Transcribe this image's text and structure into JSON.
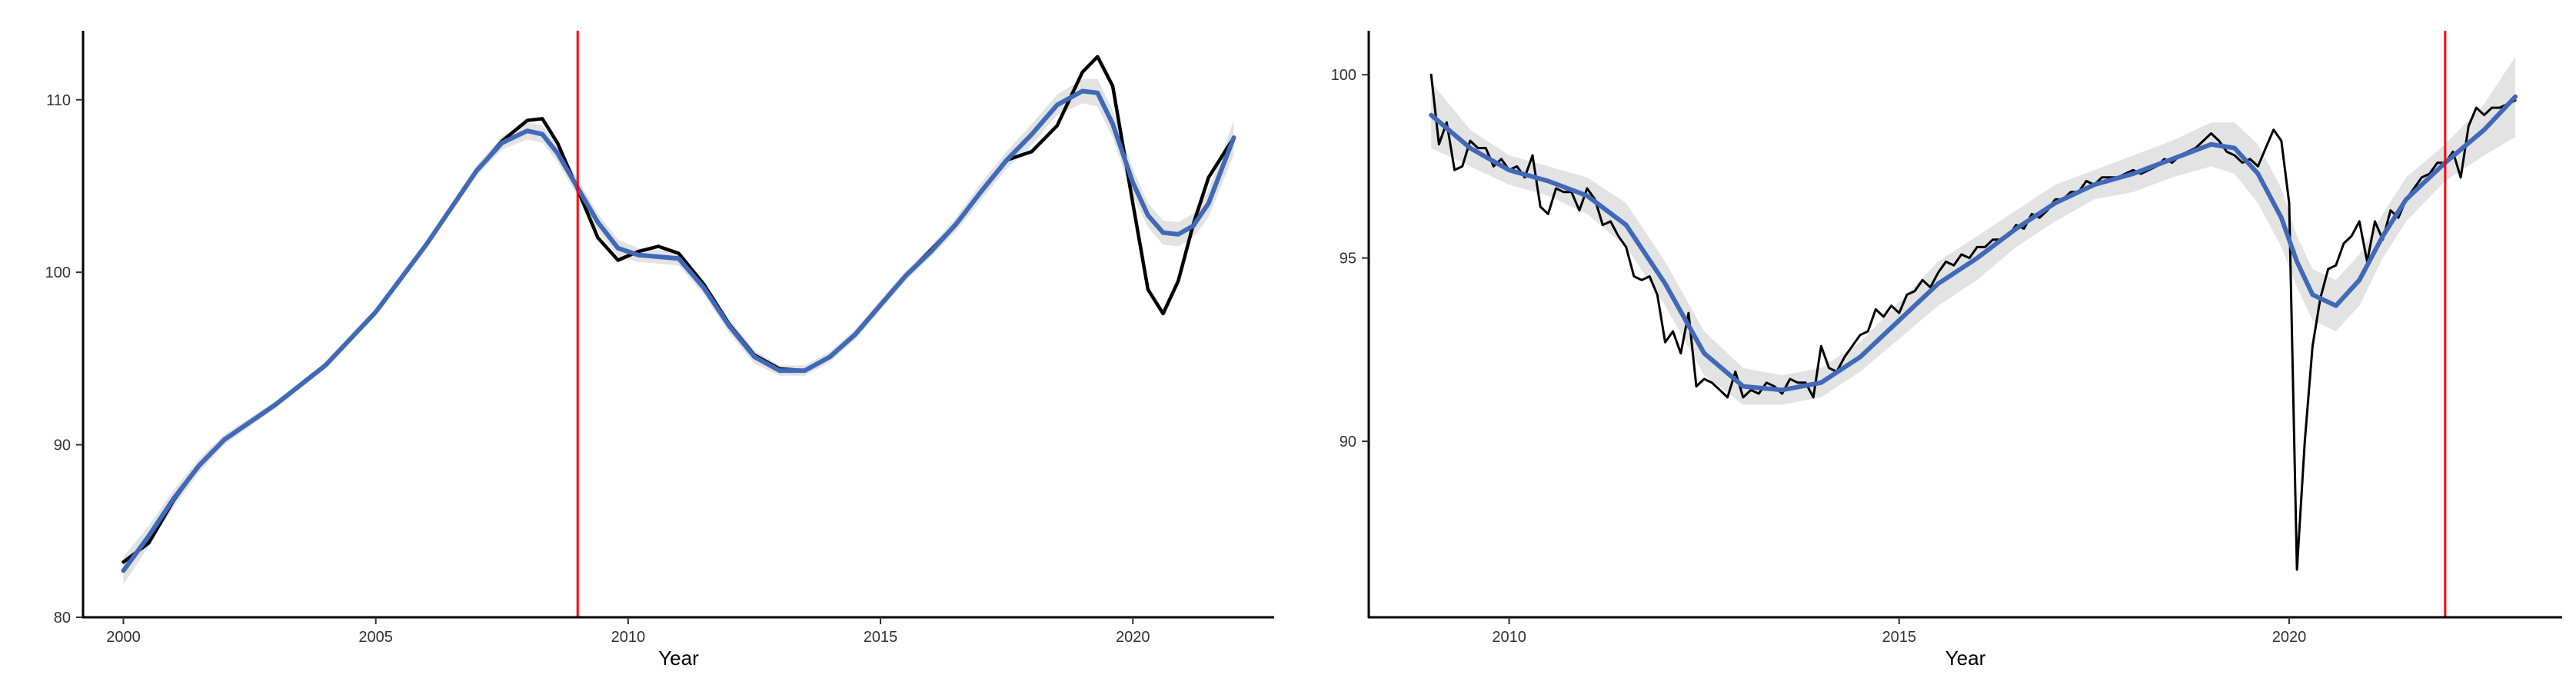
{
  "chart_data": [
    {
      "type": "line",
      "title": "",
      "xlabel": "Year",
      "ylabel": "",
      "xlim": [
        1999.2,
        2022.8
      ],
      "ylim": [
        80,
        114
      ],
      "x_ticks": [
        2000,
        2005,
        2010,
        2015,
        2020
      ],
      "x_tick_labels": [
        "2000",
        "2005",
        "2010",
        "2015",
        "2020"
      ],
      "y_ticks": [
        80,
        90,
        100,
        110
      ],
      "y_tick_labels": [
        "80",
        "90",
        "100",
        "110"
      ],
      "grid": false,
      "legend": "none",
      "vline": {
        "x": 2009,
        "color": "#ff0000"
      },
      "series": [
        {
          "role": "observed",
          "color": "#000000",
          "x": [
            2000,
            2000.5,
            2001,
            2001.5,
            2002,
            2003,
            2004,
            2005,
            2006,
            2007,
            2007.5,
            2008,
            2008.3,
            2008.6,
            2009,
            2009.4,
            2009.8,
            2010.2,
            2010.6,
            2011,
            2011.5,
            2012,
            2012.5,
            2013,
            2013.5,
            2014,
            2014.5,
            2015,
            2015.5,
            2016,
            2016.5,
            2017,
            2017.5,
            2018,
            2018.5,
            2019,
            2019.3,
            2019.6,
            2020,
            2020.3,
            2020.6,
            2020.9,
            2021.2,
            2021.5,
            2022
          ],
          "y": [
            83.2,
            84.3,
            86.8,
            88.8,
            90.3,
            92.3,
            94.6,
            97.7,
            101.6,
            105.9,
            107.6,
            108.8,
            108.9,
            107.5,
            104.8,
            102.0,
            100.7,
            101.2,
            101.5,
            101.1,
            99.3,
            97.0,
            95.2,
            94.4,
            94.3,
            95.1,
            96.4,
            98.1,
            99.8,
            101.3,
            102.8,
            104.7,
            106.5,
            107.0,
            108.5,
            111.6,
            112.5,
            110.8,
            104.0,
            99.0,
            97.6,
            99.5,
            102.8,
            105.5,
            107.8
          ]
        },
        {
          "role": "smoothed",
          "color": "#4169b7",
          "band_color": "#d9d9d9",
          "x": [
            2000,
            2000.5,
            2001,
            2001.5,
            2002,
            2003,
            2004,
            2005,
            2006,
            2007,
            2007.5,
            2008,
            2008.3,
            2008.6,
            2009,
            2009.4,
            2009.8,
            2010.2,
            2010.6,
            2011,
            2011.5,
            2012,
            2012.5,
            2013,
            2013.5,
            2014,
            2014.5,
            2015,
            2015.5,
            2016,
            2016.5,
            2017,
            2017.5,
            2018,
            2018.5,
            2019,
            2019.3,
            2019.6,
            2020,
            2020.3,
            2020.6,
            2020.9,
            2021.2,
            2021.5,
            2022
          ],
          "y": [
            82.7,
            84.7,
            86.9,
            88.8,
            90.3,
            92.3,
            94.6,
            97.7,
            101.6,
            105.9,
            107.5,
            108.2,
            108.0,
            106.9,
            104.9,
            102.9,
            101.4,
            101.0,
            100.9,
            100.8,
            99.1,
            96.9,
            95.1,
            94.3,
            94.3,
            95.1,
            96.4,
            98.1,
            99.8,
            101.2,
            102.8,
            104.7,
            106.5,
            108.0,
            109.7,
            110.5,
            110.4,
            108.6,
            105.2,
            103.3,
            102.3,
            102.2,
            102.7,
            104.0,
            107.8
          ],
          "lower": [
            81.9,
            84.1,
            86.4,
            88.4,
            90.0,
            92.1,
            94.4,
            97.5,
            101.4,
            105.6,
            107.1,
            107.7,
            107.5,
            106.4,
            104.4,
            102.4,
            100.9,
            100.6,
            100.5,
            100.4,
            98.7,
            96.5,
            94.7,
            94.0,
            94.0,
            94.8,
            96.1,
            97.8,
            99.5,
            100.9,
            102.4,
            104.2,
            106.0,
            107.4,
            109.1,
            109.8,
            109.6,
            107.8,
            104.4,
            102.6,
            101.6,
            101.5,
            102.0,
            103.2,
            106.8
          ],
          "upper": [
            83.5,
            85.3,
            87.4,
            89.2,
            90.6,
            92.5,
            94.8,
            97.9,
            101.8,
            106.2,
            107.9,
            108.7,
            108.5,
            107.4,
            105.4,
            103.4,
            101.9,
            101.4,
            101.3,
            101.2,
            99.5,
            97.3,
            95.5,
            94.6,
            94.6,
            95.4,
            96.7,
            98.4,
            100.1,
            101.5,
            103.2,
            105.2,
            107.0,
            108.6,
            110.3,
            111.2,
            111.2,
            109.4,
            106.0,
            104.0,
            103.0,
            102.9,
            103.4,
            104.8,
            108.8
          ]
        }
      ]
    },
    {
      "type": "line",
      "title": "",
      "xlabel": "Year",
      "ylabel": "",
      "xlim": [
        2008.2,
        2023.5
      ],
      "ylim": [
        85.2,
        101.2
      ],
      "x_ticks": [
        2010,
        2015,
        2020
      ],
      "x_tick_labels": [
        "2010",
        "2015",
        "2020"
      ],
      "y_ticks": [
        90,
        95,
        100
      ],
      "y_tick_labels": [
        "90",
        "95",
        "100"
      ],
      "grid": false,
      "legend": "none",
      "vline": {
        "x": 2022,
        "color": "#ff0000"
      },
      "series": [
        {
          "role": "observed",
          "color": "#000000",
          "x": [
            2009.0,
            2009.1,
            2009.2,
            2009.3,
            2009.4,
            2009.5,
            2009.6,
            2009.7,
            2009.8,
            2009.9,
            2010.0,
            2010.1,
            2010.2,
            2010.3,
            2010.4,
            2010.5,
            2010.6,
            2010.7,
            2010.8,
            2010.9,
            2011.0,
            2011.1,
            2011.2,
            2011.3,
            2011.4,
            2011.5,
            2011.6,
            2011.7,
            2011.8,
            2011.9,
            2012.0,
            2012.1,
            2012.2,
            2012.3,
            2012.4,
            2012.5,
            2012.6,
            2012.7,
            2012.8,
            2012.9,
            2013.0,
            2013.1,
            2013.2,
            2013.3,
            2013.4,
            2013.5,
            2013.6,
            2013.7,
            2013.8,
            2013.9,
            2014.0,
            2014.1,
            2014.2,
            2014.3,
            2014.4,
            2014.5,
            2014.6,
            2014.7,
            2014.8,
            2014.9,
            2015.0,
            2015.1,
            2015.2,
            2015.3,
            2015.4,
            2015.5,
            2015.6,
            2015.7,
            2015.8,
            2015.9,
            2016.0,
            2016.1,
            2016.2,
            2016.3,
            2016.4,
            2016.5,
            2016.6,
            2016.7,
            2016.8,
            2016.9,
            2017.0,
            2017.1,
            2017.2,
            2017.3,
            2017.4,
            2017.5,
            2017.6,
            2017.7,
            2017.8,
            2017.9,
            2018.0,
            2018.1,
            2018.2,
            2018.3,
            2018.4,
            2018.5,
            2018.6,
            2018.7,
            2018.8,
            2018.9,
            2019.0,
            2019.1,
            2019.2,
            2019.3,
            2019.4,
            2019.5,
            2019.6,
            2019.7,
            2019.8,
            2019.9,
            2020.0,
            2020.1,
            2020.2,
            2020.3,
            2020.4,
            2020.5,
            2020.6,
            2020.7,
            2020.8,
            2020.9,
            2021.0,
            2021.1,
            2021.2,
            2021.3,
            2021.4,
            2021.5,
            2021.6,
            2021.7,
            2021.8,
            2021.9,
            2022.0,
            2022.1,
            2022.2,
            2022.3,
            2022.4,
            2022.5,
            2022.6,
            2022.7,
            2022.8,
            2022.9
          ],
          "y": [
            100.0,
            98.1,
            98.7,
            97.4,
            97.5,
            98.2,
            98.0,
            98.0,
            97.5,
            97.7,
            97.4,
            97.5,
            97.2,
            97.8,
            96.4,
            96.2,
            96.9,
            96.8,
            96.8,
            96.3,
            96.9,
            96.6,
            95.9,
            96.0,
            95.6,
            95.3,
            94.5,
            94.4,
            94.5,
            94.0,
            92.7,
            93.0,
            92.4,
            93.5,
            91.5,
            91.7,
            91.6,
            91.4,
            91.2,
            91.9,
            91.2,
            91.4,
            91.3,
            91.6,
            91.5,
            91.3,
            91.7,
            91.6,
            91.6,
            91.2,
            92.6,
            92.0,
            91.9,
            92.3,
            92.6,
            92.9,
            93.0,
            93.6,
            93.4,
            93.7,
            93.5,
            94.0,
            94.1,
            94.4,
            94.2,
            94.6,
            94.9,
            94.8,
            95.1,
            95.0,
            95.3,
            95.3,
            95.5,
            95.5,
            95.6,
            95.9,
            95.8,
            96.2,
            96.1,
            96.3,
            96.6,
            96.6,
            96.8,
            96.8,
            97.1,
            97.0,
            97.2,
            97.2,
            97.2,
            97.3,
            97.4,
            97.3,
            97.4,
            97.5,
            97.7,
            97.6,
            97.8,
            97.9,
            98.0,
            98.2,
            98.4,
            98.2,
            97.9,
            97.8,
            97.6,
            97.7,
            97.5,
            98.0,
            98.5,
            98.2,
            96.5,
            86.5,
            90.0,
            92.6,
            93.9,
            94.7,
            94.8,
            95.4,
            95.6,
            96.0,
            94.9,
            96.0,
            95.5,
            96.3,
            96.1,
            96.6,
            96.9,
            97.2,
            97.3,
            97.6,
            97.6,
            97.9,
            97.2,
            98.6,
            99.1,
            98.9,
            99.1,
            99.1,
            99.2,
            99.3
          ]
        },
        {
          "role": "smoothed",
          "color": "#4169b7",
          "band_color": "#d9d9d9",
          "x": [
            2009,
            2009.5,
            2010,
            2010.5,
            2011,
            2011.5,
            2012,
            2012.5,
            2013,
            2013.5,
            2014,
            2014.5,
            2015,
            2015.5,
            2016,
            2016.5,
            2017,
            2017.5,
            2018,
            2018.5,
            2019,
            2019.3,
            2019.6,
            2019.9,
            2020.1,
            2020.3,
            2020.6,
            2020.9,
            2021.2,
            2021.5,
            2022,
            2022.5,
            2022.9
          ],
          "y": [
            98.9,
            98.0,
            97.4,
            97.1,
            96.7,
            95.9,
            94.3,
            92.4,
            91.5,
            91.4,
            91.6,
            92.3,
            93.3,
            94.3,
            95.0,
            95.8,
            96.5,
            97.0,
            97.3,
            97.7,
            98.1,
            98.0,
            97.3,
            96.1,
            94.9,
            94.0,
            93.7,
            94.4,
            95.6,
            96.6,
            97.6,
            98.5,
            99.4
          ],
          "lower": [
            98.0,
            97.5,
            97.0,
            96.7,
            96.2,
            95.3,
            93.7,
            91.8,
            91.0,
            91.0,
            91.2,
            91.9,
            92.8,
            93.7,
            94.4,
            95.3,
            96.0,
            96.6,
            96.8,
            97.2,
            97.5,
            97.3,
            96.5,
            95.3,
            94.2,
            93.3,
            93.0,
            93.7,
            95.0,
            96.0,
            97.1,
            97.8,
            98.3
          ],
          "upper": [
            99.8,
            98.5,
            97.8,
            97.5,
            97.2,
            96.5,
            94.9,
            93.0,
            92.0,
            91.8,
            92.0,
            92.7,
            93.8,
            94.9,
            95.6,
            96.3,
            97.0,
            97.4,
            97.8,
            98.2,
            98.7,
            98.7,
            98.1,
            96.9,
            95.6,
            94.7,
            94.4,
            95.1,
            96.2,
            97.2,
            98.1,
            99.2,
            100.5
          ]
        }
      ]
    }
  ]
}
